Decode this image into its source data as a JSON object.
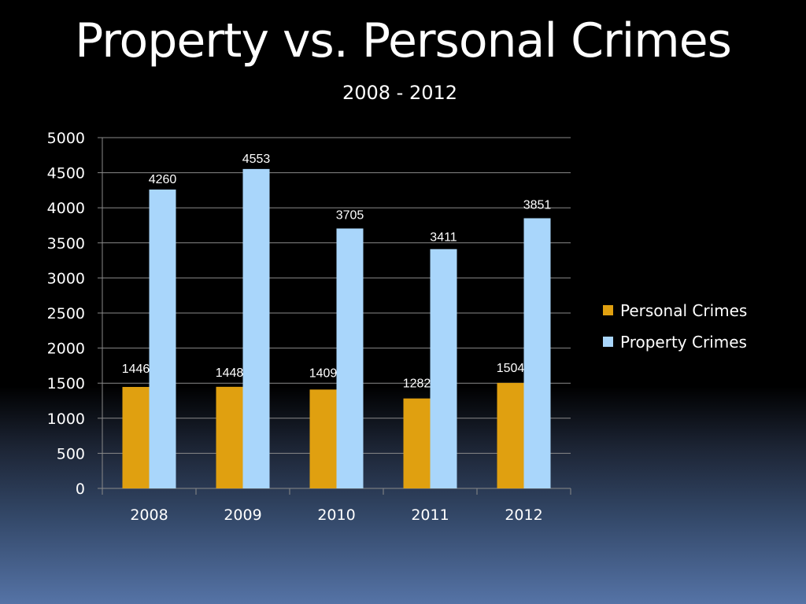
{
  "chart_data": {
    "type": "bar",
    "title": "Property vs. Personal Crimes",
    "subtitle": "2008 - 2012",
    "categories": [
      "2008",
      "2009",
      "2010",
      "2011",
      "2012"
    ],
    "series": [
      {
        "name": "Personal Crimes",
        "color": "#e0a010",
        "values": [
          1446,
          1448,
          1409,
          1282,
          1504
        ]
      },
      {
        "name": "Property Crimes",
        "color": "#a9d6fb",
        "values": [
          4260,
          4553,
          3705,
          3411,
          3851
        ]
      }
    ],
    "ylim": [
      0,
      5000
    ],
    "yticks": [
      0,
      500,
      1000,
      1500,
      2000,
      2500,
      3000,
      3500,
      4000,
      4500,
      5000
    ],
    "xlabel": "",
    "ylabel": "",
    "grid": true,
    "legend_position": "right",
    "data_labels": true
  }
}
